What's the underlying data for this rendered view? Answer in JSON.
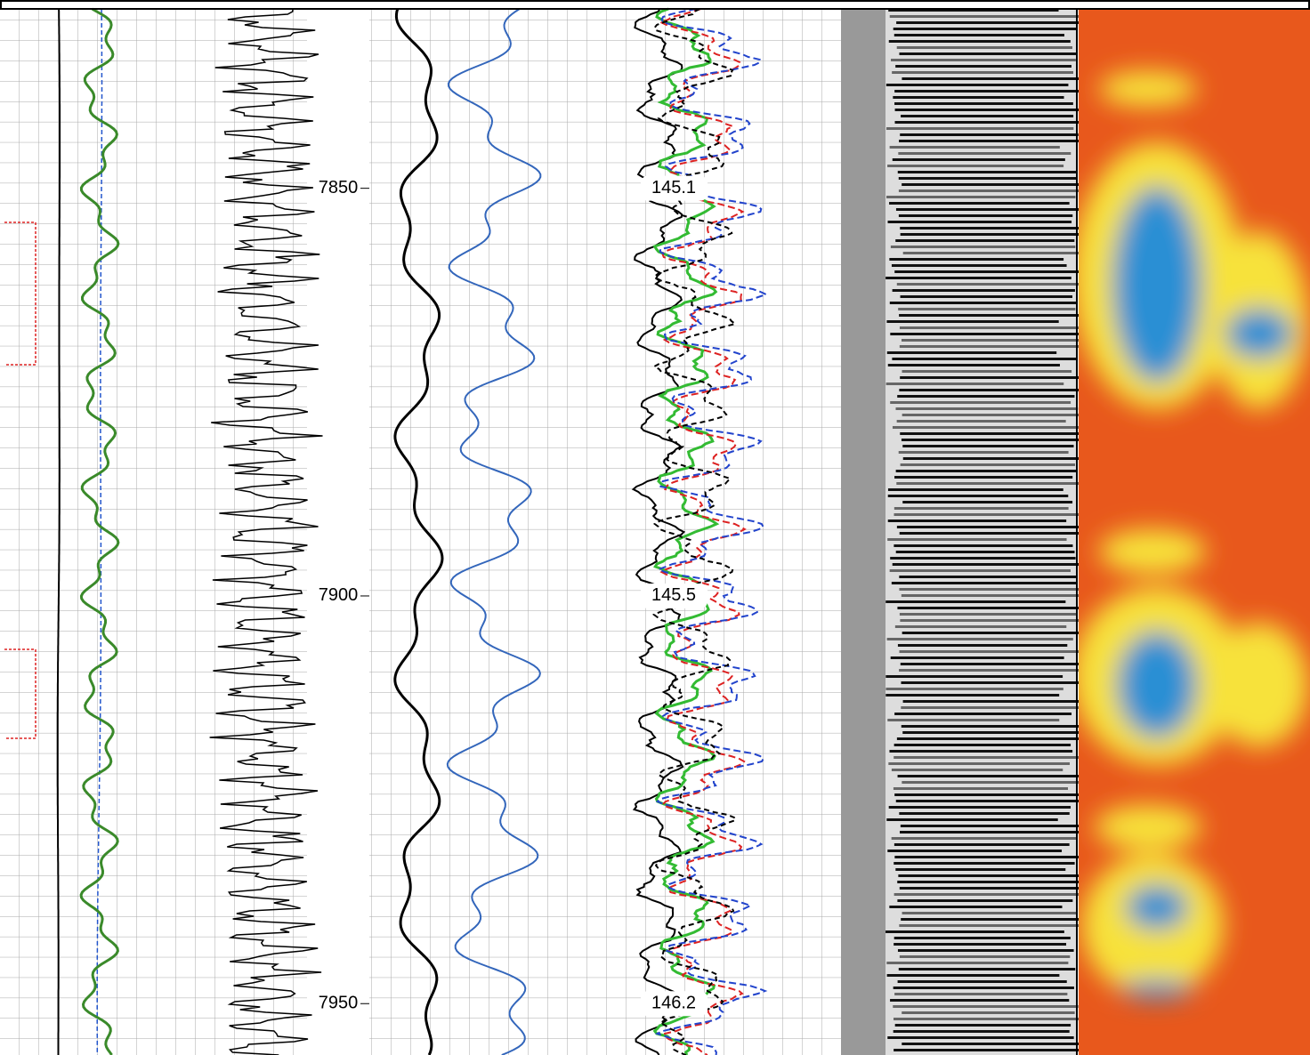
{
  "chart_data": {
    "type": "well-log",
    "ylim": [
      7828,
      7956.3
    ],
    "yticks": [
      7850,
      7900,
      7950
    ],
    "temperature_labels": [
      "145.1",
      "145.5",
      "146.2"
    ]
  }
}
